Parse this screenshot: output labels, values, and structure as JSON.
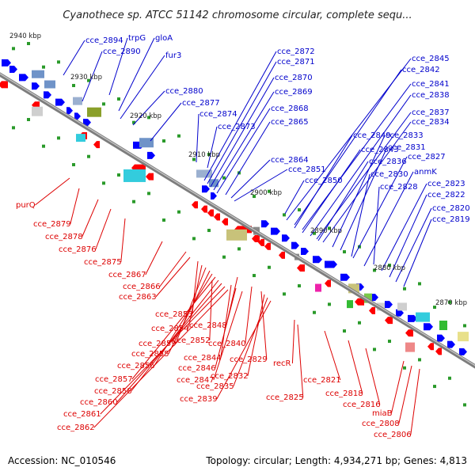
{
  "title": "Cyanothece sp. ATCC 51142 chromosome circular, complete sequ...",
  "footer": {
    "accession": "Accession: NC_010546",
    "summary": "Topology: circular; Length: 4,934,271 bp; Genes: 4,813"
  },
  "colors": {
    "background": "#ffffff",
    "backbone": "#888888",
    "forward_label": "#0000cc",
    "reverse_label": "#dd0000",
    "forward_arrow": "#0000ff",
    "reverse_arrow": "#ff0000"
  },
  "kbp_ticks": [
    "2940 kbp",
    "2930 kbp",
    "2920 kbp",
    "2910 kbp",
    "2900 kbp",
    "2890 kbp",
    "2880 kbp",
    "2870 kbp"
  ],
  "upper_labels": [
    "cce_2894",
    "trpG",
    "gloA",
    "cce_2890",
    "fur3",
    "cce_2880",
    "cce_2877",
    "cce_2874",
    "cce_2873",
    "cce_2872",
    "cce_2871",
    "cce_2870",
    "cce_2869",
    "cce_2868",
    "cce_2865",
    "cce_2864",
    "cce_2851",
    "cce_2850",
    "cce_2845",
    "cce_2842",
    "cce_2841",
    "cce_2838",
    "cce_2837",
    "cce_2834",
    "cce_2849",
    "cce_2843",
    "cce_2833",
    "cce_2831",
    "cce_2836",
    "cce_2827",
    "cce_2830",
    "anmK",
    "cce_2828",
    "cce_2823",
    "cce_2822",
    "cce_2820",
    "cce_2819"
  ],
  "lower_labels": [
    "purQ",
    "cce_2879",
    "cce_2878",
    "cce_2876",
    "cce_2875",
    "cce_2867",
    "cce_2866",
    "cce_2863",
    "cce_2853",
    "cce_2854",
    "cce_2859",
    "cce_2855",
    "cce_2856",
    "cce_2857",
    "cce_2858",
    "cce_2860",
    "cce_2861",
    "cce_2862",
    "cce_2852",
    "cce_2848",
    "cce_2844",
    "cce_2846",
    "cce_2847",
    "cce_2840",
    "cce_2829",
    "cce_2832",
    "cce_2835",
    "cce_2839",
    "recR",
    "cce_2825",
    "cce_2821",
    "cce_2818",
    "cce_2816",
    "miaB",
    "cce_2808",
    "cce_2806"
  ]
}
